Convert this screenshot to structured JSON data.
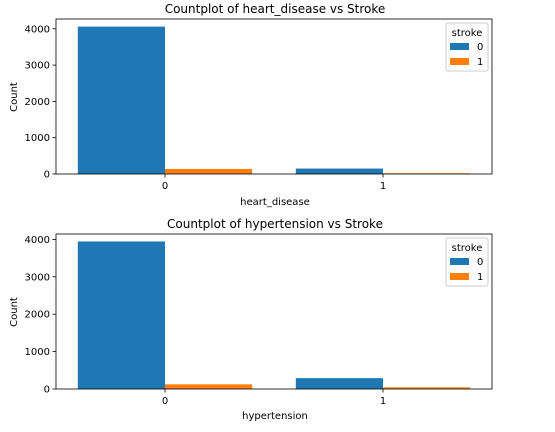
{
  "chart_data": [
    {
      "type": "bar",
      "title": "Countplot of heart_disease vs Stroke",
      "xlabel": "heart_disease",
      "ylabel": "Count",
      "categories": [
        "0",
        "1"
      ],
      "series": [
        {
          "name": "0",
          "color": "#1f77b4",
          "values": [
            4060,
            150
          ]
        },
        {
          "name": "1",
          "color": "#ff7f0e",
          "values": [
            140,
            20
          ]
        }
      ],
      "ylim": [
        0,
        4270
      ],
      "yticks": [
        0,
        1000,
        2000,
        3000,
        4000
      ],
      "legend": {
        "title": "stroke",
        "placement": "top-right"
      }
    },
    {
      "type": "bar",
      "title": "Countplot of hypertension vs Stroke",
      "xlabel": "hypertension",
      "ylabel": "Count",
      "categories": [
        "0",
        "1"
      ],
      "series": [
        {
          "name": "0",
          "color": "#1f77b4",
          "values": [
            3945,
            290
          ]
        },
        {
          "name": "1",
          "color": "#ff7f0e",
          "values": [
            125,
            45
          ]
        }
      ],
      "ylim": [
        0,
        4145
      ],
      "yticks": [
        0,
        1000,
        2000,
        3000,
        4000
      ],
      "legend": {
        "title": "stroke",
        "placement": "top-right"
      }
    }
  ]
}
